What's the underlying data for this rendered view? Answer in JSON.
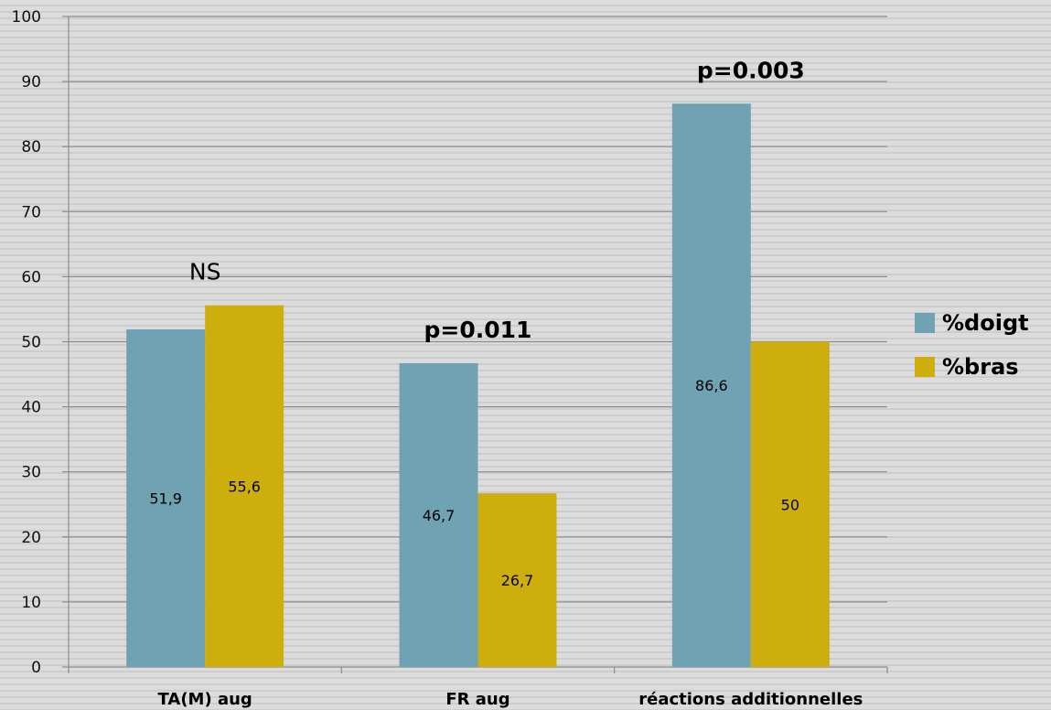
{
  "chart_data": {
    "type": "bar",
    "categories": [
      "TA(M) aug",
      "FR aug",
      "réactions additionnelles"
    ],
    "series": [
      {
        "name": "%doigt",
        "values": [
          51.9,
          46.7,
          86.6
        ],
        "labels": [
          "51,9",
          "46,7",
          "86,6"
        ],
        "color": "#6fa2b3"
      },
      {
        "name": "%bras",
        "values": [
          55.6,
          26.7,
          50
        ],
        "labels": [
          "55,6",
          "26,7",
          "50"
        ],
        "color": "#ceae0c"
      }
    ],
    "annotations": [
      "NS",
      "p=0.011",
      "p=0.003"
    ],
    "ylim": [
      0,
      100
    ],
    "yticks": [
      0,
      10,
      20,
      30,
      40,
      50,
      60,
      70,
      80,
      90,
      100
    ],
    "grid": true,
    "legend_position": "right"
  }
}
